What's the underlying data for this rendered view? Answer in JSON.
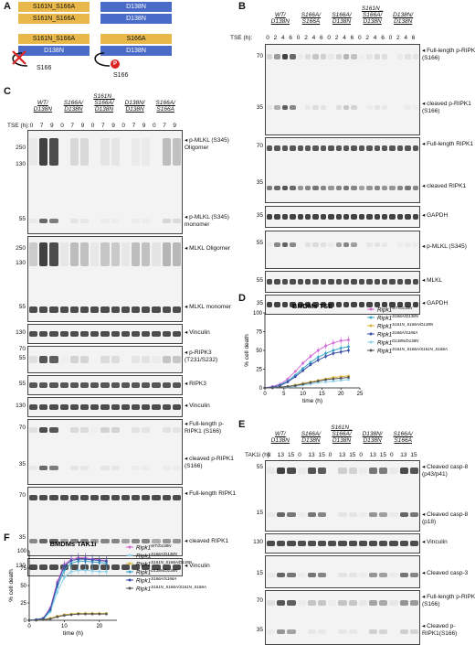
{
  "panelA": {
    "letter": "A",
    "box1": "S161N_S166A",
    "box2": "S161N_S166A",
    "box3": "D138N",
    "box4": "D138N",
    "box5": "S161N_S166A",
    "box6": "D138N",
    "box7": "S166A",
    "box8": "D138N",
    "site1": "S166",
    "site2": "S166",
    "p": "P"
  },
  "panelB": {
    "letter": "B",
    "groups": [
      "WT/\nD138N",
      "S166A/\nS166A",
      "S166A/\nD138N",
      "S161N_\nS166A/\nD138N",
      "D138N/\nD138N"
    ],
    "tse": "TSE (h):",
    "times": [
      "0",
      "2",
      "4",
      "6",
      "0",
      "2",
      "4",
      "6",
      "0",
      "2",
      "4",
      "6",
      "0",
      "2",
      "4",
      "6",
      "0",
      "2",
      "4",
      "6"
    ],
    "labels": [
      "Full-length p-RIPK1 (S166)",
      "cleaved p-RIPK1 (S166)",
      "Full-length RIPK1",
      "cleaved RIPK1",
      "GAPDH",
      "p-MLKL (S345)",
      "MLKL",
      "GAPDH"
    ],
    "mw": [
      "70",
      "35",
      "70",
      "35",
      "35",
      "55",
      "55",
      "35"
    ]
  },
  "panelC": {
    "letter": "C",
    "groups": [
      "WT/\nD138N",
      "S166A/\nD138N",
      "S161N_\nS166A/\nD138N",
      "D138N/\nD138N",
      "S166A/\nS166A"
    ],
    "tse": "TSE (h):",
    "times": [
      "0",
      "7",
      "9",
      "0",
      "7",
      "9",
      "0",
      "7",
      "9",
      "0",
      "7",
      "9",
      "0",
      "7",
      "9"
    ],
    "labels": [
      "p-MLKL (S345) Oligomer",
      "p-MLKL (S345) monomer",
      "MLKL Oligomer",
      "MLKL monomer",
      "Vinculin",
      "p-RIPK3 (T231/S232)",
      "RIPK3",
      "Vinculin",
      "Full-length p-RIPK1 (S166)",
      "cleaved p-RIPK1 (S166)",
      "Full-length RIPK1",
      "cleaved RIPK1",
      "Vinculin"
    ],
    "mw": [
      "250",
      "130",
      "55",
      "250",
      "130",
      "55",
      "130",
      "70",
      "55",
      "55",
      "130",
      "70",
      "35",
      "70",
      "35",
      "130"
    ]
  },
  "panelD": {
    "letter": "D",
    "title": "BMDMs TSE",
    "ylabel": "% cell death",
    "xlabel": "time (h)",
    "legend": [
      "Ripk1^WT/D138N",
      "Ripk1^S166A/D138N",
      "Ripk1^S161N_S166A/D138N",
      "Ripk1^S166A/S166A",
      "Ripk1^D138N/D138N",
      "Ripk1^S161N_S166A/S161N_S166A"
    ],
    "legend_base": [
      "Ripk1",
      "Ripk1",
      "Ripk1",
      "Ripk1",
      "Ripk1",
      "Ripk1"
    ],
    "legend_sup": [
      "WT/D138N",
      "S166A/D138N",
      "S161N_S166A/D138N",
      "S166A/S166A",
      "D138N/D138N",
      "S161N_S166A/S161N_S166A"
    ],
    "colors": [
      "#d36ad6",
      "#3aa6c9",
      "#d8b23a",
      "#3a4fa8",
      "#8fd0e8",
      "#555555"
    ]
  },
  "panelE": {
    "letter": "E",
    "groups": [
      "WT/\nD138N",
      "S166A/\nD138N",
      "S161N_\nS166A/\nD138N",
      "D138N/\nD138N",
      "S166A/\nS166A"
    ],
    "taki": "TAK1i (h):",
    "times": [
      "0",
      "13",
      "15",
      "0",
      "13",
      "15",
      "0",
      "13",
      "15",
      "0",
      "13",
      "15",
      "0",
      "13",
      "15"
    ],
    "labels": [
      "Cleaved casp-8 (p43/p41)",
      "Cleaved casp-8 (p18)",
      "Vinculin",
      "Cleaved casp-3",
      "Full-length p-RIPK1 (S166)",
      "Cleaved p-RIPK1(S166)",
      "Full-length RIPK1",
      "Cleaved RIPK1",
      "Vinculin"
    ],
    "mw": [
      "55",
      "15",
      "130",
      "15",
      "70",
      "35",
      "70",
      "35",
      "130"
    ]
  },
  "panelF": {
    "letter": "F",
    "title": "BMDMs TAK1i",
    "ylabel": "% cell death",
    "xlabel": "time (h)",
    "legend_base": [
      "Ripk1",
      "Ripk1",
      "Ripk1",
      "Ripk1",
      "Ripk1",
      "Ripk1"
    ],
    "legend_sup": [
      "WT/D138N",
      "S166A/D138N",
      "S161N_S166A/D138N",
      "D138N/D138N",
      "S166A/S166A",
      "S161N_S166A/S161N_S166A"
    ],
    "colors": [
      "#d36ad6",
      "#8fd0e8",
      "#d8b23a",
      "#3aa6c9",
      "#3a4fa8",
      "#555555"
    ]
  },
  "chart_data": [
    {
      "type": "line",
      "title": "BMDMs TSE",
      "xlabel": "time (h)",
      "ylabel": "% cell death",
      "xlim": [
        0,
        25
      ],
      "ylim": [
        0,
        100
      ],
      "x": [
        0,
        2,
        4,
        6,
        8,
        10,
        12,
        14,
        16,
        18,
        20,
        22
      ],
      "series": [
        {
          "name": "Ripk1^WT/D138N",
          "values": [
            0,
            2,
            5,
            12,
            22,
            33,
            42,
            50,
            56,
            60,
            63,
            64
          ]
        },
        {
          "name": "Ripk1^S166A/D138N",
          "values": [
            0,
            1,
            4,
            9,
            17,
            26,
            34,
            41,
            46,
            50,
            53,
            55
          ]
        },
        {
          "name": "Ripk1^S161N_S166A/D138N",
          "values": [
            0,
            0,
            1,
            2,
            4,
            6,
            8,
            10,
            12,
            14,
            15,
            16
          ]
        },
        {
          "name": "Ripk1^S166A/S166A",
          "values": [
            0,
            1,
            3,
            8,
            15,
            23,
            31,
            37,
            42,
            46,
            48,
            50
          ]
        },
        {
          "name": "Ripk1^D138N/D138N",
          "values": [
            0,
            0,
            1,
            1,
            2,
            4,
            5,
            7,
            8,
            9,
            10,
            11
          ]
        },
        {
          "name": "Ripk1^S161N_S166A/S161N_S166A",
          "values": [
            0,
            0,
            1,
            2,
            3,
            5,
            7,
            9,
            11,
            12,
            13,
            14
          ]
        }
      ]
    },
    {
      "type": "line",
      "title": "BMDMs TAK1i",
      "xlabel": "time (h)",
      "ylabel": "% cell death",
      "xlim": [
        0,
        25
      ],
      "ylim": [
        0,
        100
      ],
      "x": [
        0,
        2,
        4,
        6,
        8,
        10,
        12,
        14,
        16,
        18,
        20,
        22
      ],
      "series": [
        {
          "name": "Ripk1^WT/D138N",
          "values": [
            0,
            1,
            3,
            18,
            55,
            80,
            88,
            90,
            90,
            88,
            87,
            86
          ]
        },
        {
          "name": "Ripk1^S166A/D138N",
          "values": [
            0,
            1,
            2,
            12,
            40,
            62,
            70,
            72,
            72,
            71,
            70,
            70
          ]
        },
        {
          "name": "Ripk1^S161N_S166A/D138N",
          "values": [
            0,
            0,
            1,
            3,
            6,
            8,
            9,
            10,
            10,
            10,
            10,
            10
          ]
        },
        {
          "name": "Ripk1^D138N/D138N",
          "values": [
            0,
            1,
            2,
            14,
            48,
            72,
            82,
            85,
            85,
            84,
            83,
            82
          ]
        },
        {
          "name": "Ripk1^S166A/S166A",
          "values": [
            0,
            1,
            3,
            16,
            52,
            78,
            86,
            88,
            88,
            87,
            86,
            85
          ]
        },
        {
          "name": "Ripk1^S161N_S166A/S161N_S166A",
          "values": [
            0,
            0,
            1,
            2,
            5,
            7,
            8,
            9,
            9,
            9,
            9,
            9
          ]
        }
      ]
    }
  ]
}
